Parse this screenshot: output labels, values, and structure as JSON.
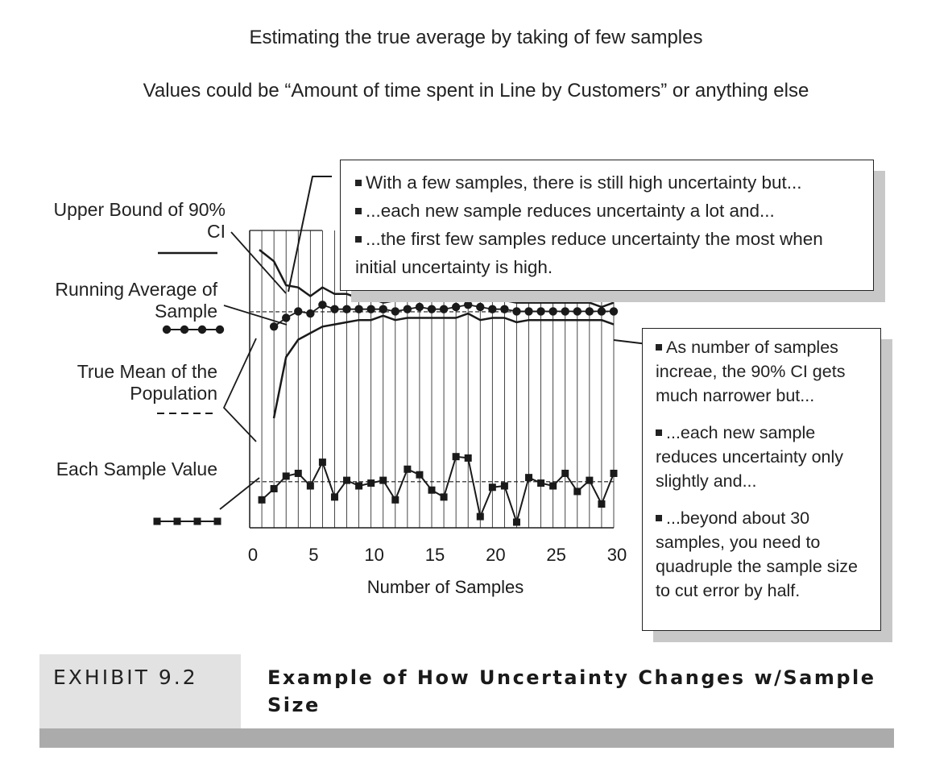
{
  "headings": {
    "title": "Estimating the true average by taking of few samples",
    "subtitle": "Values could be “Amount of time spent in Line by Customers” or anything else"
  },
  "legend": {
    "upper_bound": "Upper Bound of 90% CI",
    "running_average": "Running Average of Sample",
    "true_mean": "True Mean of the Population",
    "sample_value": "Each Sample Value"
  },
  "callouts": {
    "top": [
      "With a few samples, there is still high uncertainty but...",
      "...each new sample reduces uncertainty a lot and...",
      "...the first few samples reduce uncertainty the most when initial uncertainty is high."
    ],
    "right": [
      "As number of samples increae, the 90% CI gets much narrower but...",
      "...each new sample reduces uncertainty only slightly and...",
      "...beyond about 30 samples, you need to quadruple the sample size to cut error by half."
    ]
  },
  "exhibit": {
    "label": "EXHIBIT 9.2",
    "title": "Example of How Uncertainty Changes w/Sample Size"
  },
  "colors": {
    "ink": "#1a1a1a",
    "shadow": "#c8c8c8",
    "caption_band": "#e2e2e2",
    "caption_bar": "#ababab"
  },
  "chart_data": {
    "type": "line",
    "title": "",
    "xlabel": "Number of Samples",
    "ylabel": "",
    "x_ticks": [
      0,
      5,
      10,
      15,
      20,
      25,
      30
    ],
    "xlim": [
      0,
      30
    ],
    "ylim": [
      0,
      100
    ],
    "grid": "vertical lines at every sample",
    "series": [
      {
        "name": "Upper Bound of 90% CI",
        "style": "solid",
        "x": [
          1,
          2,
          3,
          4,
          5,
          6,
          7,
          8,
          9,
          10,
          11,
          12,
          13,
          14,
          15,
          16,
          17,
          18,
          19,
          20,
          21,
          22,
          23,
          24,
          25,
          26,
          27,
          28,
          29,
          30
        ],
        "values": [
          100,
          91,
          80,
          79,
          75,
          79,
          76,
          76,
          74,
          74,
          72,
          73,
          74,
          74,
          73,
          74,
          76,
          75,
          74,
          74,
          73,
          72,
          72,
          72,
          72,
          72,
          72,
          72,
          70,
          72
        ]
      },
      {
        "name": "Running Average of Sample",
        "style": "dots",
        "x": [
          2,
          3,
          4,
          5,
          6,
          7,
          8,
          9,
          10,
          11,
          12,
          13,
          14,
          15,
          16,
          17,
          18,
          19,
          20,
          21,
          22,
          23,
          24,
          25,
          26,
          27,
          28,
          29,
          30
        ],
        "values": [
          61,
          65,
          68,
          67,
          71,
          69,
          69,
          69,
          69,
          69,
          68,
          69,
          70,
          69,
          69,
          70,
          71,
          70,
          69,
          69,
          68,
          68,
          68,
          68,
          68,
          68,
          68,
          68,
          68
        ]
      },
      {
        "name": "Lower Bound of 90% CI",
        "style": "solid",
        "x": [
          2,
          3,
          4,
          5,
          6,
          7,
          8,
          9,
          10,
          11,
          12,
          13,
          14,
          15,
          16,
          17,
          18,
          19,
          20,
          21,
          22,
          23,
          24,
          25,
          26,
          27,
          28,
          29,
          30
        ],
        "values": [
          37,
          47,
          55,
          58,
          61,
          62,
          63,
          64,
          64,
          66,
          64,
          65,
          65,
          65,
          65,
          65,
          67,
          64,
          65,
          65,
          63,
          64,
          64,
          64,
          64,
          64,
          64,
          64,
          62
        ]
      },
      {
        "name": "True Mean of the Population",
        "style": "dashed",
        "lines": [
          {
            "label": "running-average panel",
            "value": 67.8
          },
          {
            "label": "sample-value panel",
            "value": 29
          }
        ]
      },
      {
        "name": "Each Sample Value",
        "style": "squares",
        "x": [
          1,
          2,
          3,
          4,
          5,
          6,
          7,
          8,
          9,
          10,
          11,
          12,
          13,
          14,
          15,
          16,
          17,
          18,
          19,
          20,
          21,
          22,
          23,
          24,
          25,
          26,
          27,
          28,
          29,
          30
        ],
        "values": [
          16,
          24,
          33,
          35,
          26,
          43,
          18,
          30,
          26,
          28,
          30,
          16,
          38,
          34,
          23,
          18,
          47,
          46,
          4,
          25,
          26,
          0,
          32,
          28,
          26,
          35,
          22,
          30,
          13,
          35
        ]
      }
    ]
  }
}
